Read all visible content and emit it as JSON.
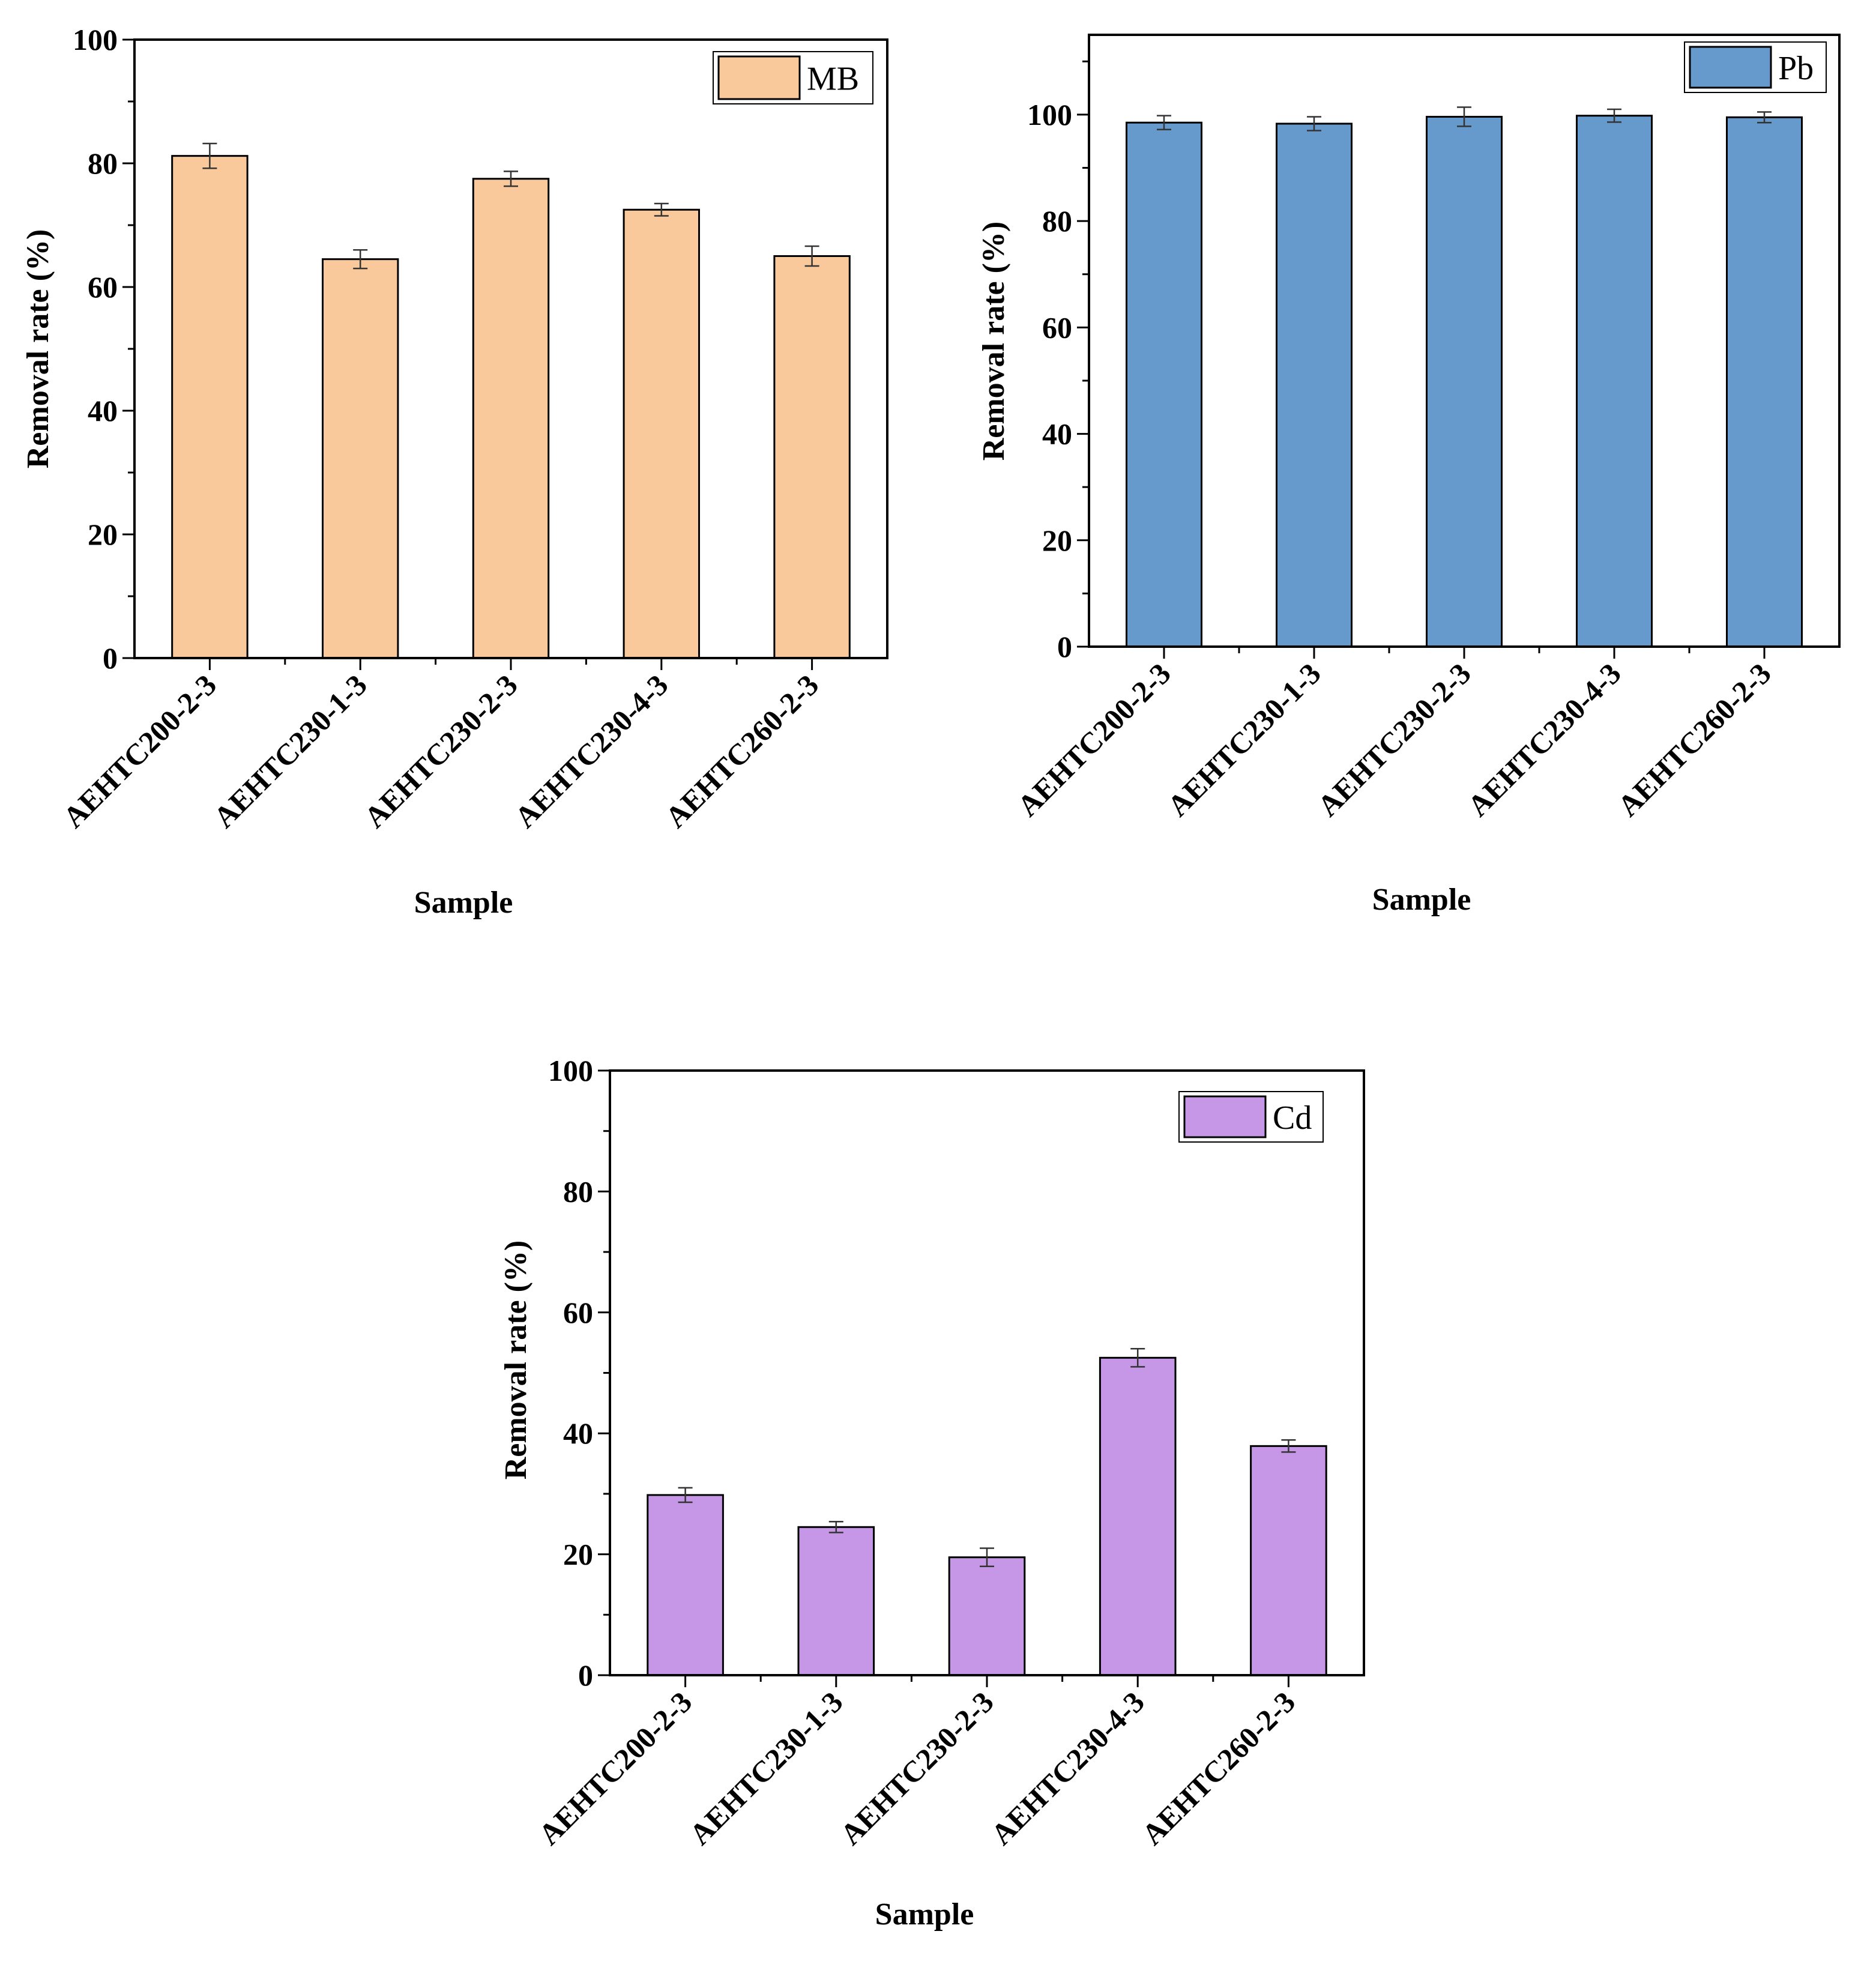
{
  "chart_data": [
    {
      "type": "bar",
      "title": "",
      "legend": "MB",
      "color": "#f9c89b",
      "categories": [
        "AEHTC200-2-3",
        "AEHTC230-1-3",
        "AEHTC230-2-3",
        "AEHTC230-4-3",
        "AEHTC260-2-3"
      ],
      "values": [
        81.2,
        64.5,
        77.5,
        72.5,
        65.0
      ],
      "errors": [
        2.0,
        1.5,
        1.2,
        1.0,
        1.6
      ],
      "xlabel": "Sample",
      "ylabel": "Removal rate (%)",
      "ylim": [
        0,
        100
      ],
      "yticks": [
        0,
        20,
        40,
        60,
        80,
        100
      ],
      "legend_position": "top-right"
    },
    {
      "type": "bar",
      "title": "",
      "legend": "Pb",
      "color": "#6699cc",
      "categories": [
        "AEHTC200-2-3",
        "AEHTC230-1-3",
        "AEHTC230-2-3",
        "AEHTC230-4-3",
        "AEHTC260-2-3"
      ],
      "values": [
        98.5,
        98.3,
        99.6,
        99.8,
        99.5
      ],
      "errors": [
        1.3,
        1.3,
        1.8,
        1.2,
        1.0
      ],
      "xlabel": "Sample",
      "ylabel": "Removal rate (%)",
      "ylim": [
        0,
        115
      ],
      "yticks": [
        0,
        20,
        40,
        60,
        80,
        100
      ],
      "legend_position": "top-right"
    },
    {
      "type": "bar",
      "title": "",
      "legend": "Cd",
      "color": "#c597e6",
      "categories": [
        "AEHTC200-2-3",
        "AEHTC230-1-3",
        "AEHTC230-2-3",
        "AEHTC230-4-3",
        "AEHTC260-2-3"
      ],
      "values": [
        29.8,
        24.5,
        19.5,
        52.5,
        37.9
      ],
      "errors": [
        1.2,
        0.9,
        1.5,
        1.5,
        1.0
      ],
      "xlabel": "Sample",
      "ylabel": "Removal rate (%)",
      "ylim": [
        0,
        100
      ],
      "yticks": [
        0,
        20,
        40,
        60,
        80,
        100
      ],
      "legend_position": "top-right"
    }
  ]
}
